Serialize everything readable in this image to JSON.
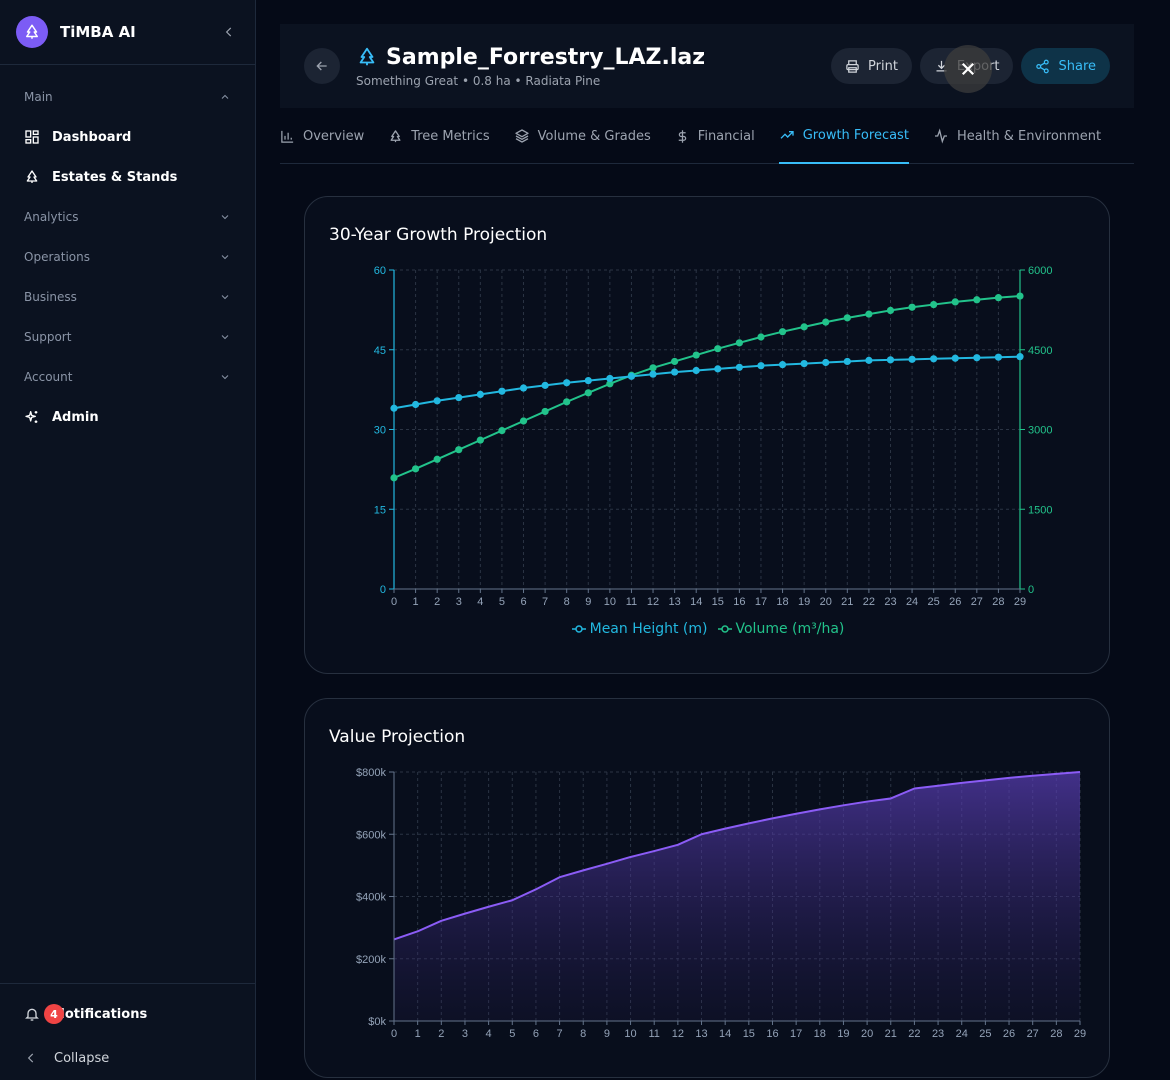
{
  "app": {
    "name": "TiMBA AI"
  },
  "sidebar": {
    "sections": [
      {
        "label": "Main"
      },
      {
        "label": "Analytics"
      },
      {
        "label": "Operations"
      },
      {
        "label": "Business"
      },
      {
        "label": "Support"
      },
      {
        "label": "Account"
      }
    ],
    "items": [
      {
        "label": "Dashboard",
        "icon": "dashboard-grid-icon"
      },
      {
        "label": "Estates & Stands",
        "icon": "tree-icon"
      },
      {
        "label": "Admin",
        "icon": "sparkles-icon"
      }
    ],
    "notifications": {
      "label": "Notifications",
      "count": "4"
    },
    "collapse_label": "Collapse"
  },
  "header": {
    "title": "Sample_Forrestry_LAZ.laz",
    "subtitle": "Something Great • 0.8 ha • Radiata Pine",
    "actions": {
      "print": "Print",
      "export": "Export",
      "share": "Share"
    }
  },
  "tabs": [
    {
      "label": "Overview",
      "icon": "bar-chart-icon"
    },
    {
      "label": "Tree Metrics",
      "icon": "tree-icon"
    },
    {
      "label": "Volume & Grades",
      "icon": "layers-icon"
    },
    {
      "label": "Financial",
      "icon": "dollar-icon"
    },
    {
      "label": "Growth Forecast",
      "icon": "trending-up-icon",
      "active": true
    },
    {
      "label": "Health & Environment",
      "icon": "activity-icon"
    }
  ],
  "colors": {
    "accent": "#38bdf8",
    "height_series": "#22b8e0",
    "volume_series": "#22c38b",
    "value_series": "#8b5cf6"
  },
  "growth_card": {
    "title": "30-Year Growth Projection"
  },
  "value_card": {
    "title": "Value Projection"
  },
  "chart_data": [
    {
      "type": "line",
      "title": "30-Year Growth Projection",
      "x": [
        0,
        1,
        2,
        3,
        4,
        5,
        6,
        7,
        8,
        9,
        10,
        11,
        12,
        13,
        14,
        15,
        16,
        17,
        18,
        19,
        20,
        21,
        22,
        23,
        24,
        25,
        26,
        27,
        28,
        29
      ],
      "series": [
        {
          "name": "Mean Height (m)",
          "axis": "left",
          "values": [
            34.0,
            34.7,
            35.4,
            36.0,
            36.6,
            37.2,
            37.8,
            38.3,
            38.8,
            39.2,
            39.6,
            40.0,
            40.4,
            40.8,
            41.1,
            41.4,
            41.7,
            42.0,
            42.2,
            42.4,
            42.6,
            42.8,
            43.0,
            43.1,
            43.2,
            43.3,
            43.4,
            43.5,
            43.6,
            43.7
          ]
        },
        {
          "name": "Volume (m³/ha)",
          "axis": "right",
          "values": [
            2090,
            2260,
            2440,
            2620,
            2800,
            2980,
            3160,
            3340,
            3520,
            3690,
            3860,
            4020,
            4160,
            4280,
            4400,
            4520,
            4630,
            4740,
            4840,
            4930,
            5020,
            5100,
            5170,
            5240,
            5300,
            5350,
            5400,
            5440,
            5480,
            5510
          ]
        }
      ],
      "ylim_left": [
        0,
        60
      ],
      "yticks_left": [
        0,
        15,
        30,
        45,
        60
      ],
      "ylim_right": [
        0,
        6000
      ],
      "yticks_right": [
        0,
        1500,
        3000,
        4500,
        6000
      ],
      "grid": true,
      "legend": "bottom"
    },
    {
      "type": "area",
      "title": "Value Projection",
      "x": [
        0,
        1,
        2,
        3,
        4,
        5,
        6,
        7,
        8,
        9,
        10,
        11,
        12,
        13,
        14,
        15,
        16,
        17,
        18,
        19,
        20,
        21,
        22,
        23,
        24,
        25,
        26,
        27,
        28,
        29
      ],
      "values": [
        262000,
        288000,
        322000,
        345000,
        367000,
        388000,
        423000,
        462000,
        484000,
        505000,
        527000,
        546000,
        566000,
        600000,
        618000,
        635000,
        651000,
        666000,
        680000,
        693000,
        705000,
        715000,
        747000,
        756000,
        765000,
        773000,
        781000,
        788000,
        794000,
        800000
      ],
      "ylim": [
        0,
        800000
      ],
      "yticks": [
        "$0k",
        "$200k",
        "$400k",
        "$600k",
        "$800k"
      ],
      "grid": true
    }
  ]
}
